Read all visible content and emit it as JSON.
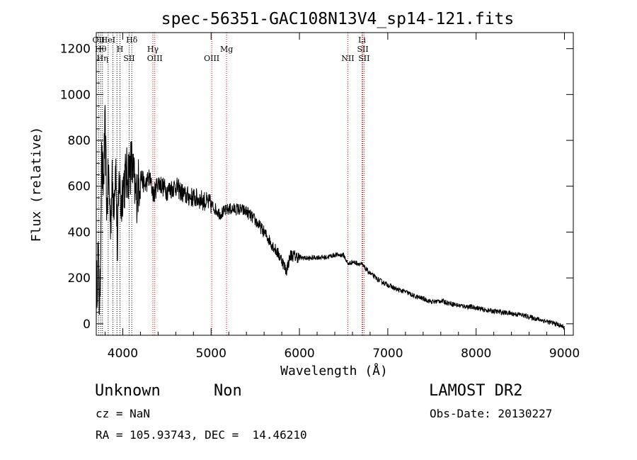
{
  "chart_data": {
    "type": "line",
    "title": "spec-56351-GAC108N13V4_sp14-121.fits",
    "xlabel": "Wavelength (Å)",
    "ylabel": "Flux (relative)",
    "xlim": [
      3700,
      9100
    ],
    "ylim": [
      -50,
      1270
    ],
    "x_ticks": [
      "4000",
      "5000",
      "6000",
      "7000",
      "8000",
      "9000"
    ],
    "x_tick_values": [
      4000,
      5000,
      6000,
      7000,
      8000,
      9000
    ],
    "y_ticks": [
      "0",
      "200",
      "400",
      "600",
      "800",
      "1000",
      "1200"
    ],
    "y_tick_values": [
      0,
      200,
      400,
      600,
      800,
      1000,
      1200
    ],
    "grid": false,
    "series": [
      {
        "name": "",
        "x": [
          3700,
          3720,
          3740,
          3760,
          3780,
          3800,
          3820,
          3840,
          3860,
          3880,
          3900,
          3920,
          3940,
          3960,
          3980,
          4000,
          4050,
          4100,
          4150,
          4200,
          4250,
          4300,
          4350,
          4400,
          4450,
          4500,
          4600,
          4700,
          4800,
          4900,
          5000,
          5100,
          5200,
          5300,
          5400,
          5500,
          5600,
          5700,
          5800,
          5850,
          5900,
          6000,
          6100,
          6200,
          6300,
          6400,
          6500,
          6550,
          6600,
          6700,
          6750,
          6800,
          6900,
          7000,
          7100,
          7200,
          7300,
          7400,
          7500,
          7600,
          7700,
          7800,
          7900,
          8000,
          8100,
          8200,
          8300,
          8400,
          8500,
          8600,
          8700,
          8800,
          8900,
          9000
        ],
        "y": [
          100,
          300,
          50,
          700,
          600,
          850,
          500,
          650,
          450,
          600,
          550,
          700,
          300,
          650,
          500,
          600,
          650,
          700,
          550,
          650,
          600,
          640,
          560,
          620,
          600,
          580,
          600,
          560,
          550,
          540,
          520,
          480,
          500,
          500,
          490,
          450,
          400,
          340,
          280,
          230,
          300,
          290,
          285,
          290,
          290,
          300,
          300,
          260,
          270,
          260,
          240,
          220,
          190,
          170,
          150,
          140,
          120,
          110,
          95,
          100,
          90,
          80,
          75,
          70,
          60,
          55,
          50,
          45,
          40,
          30,
          20,
          10,
          0,
          -15
        ]
      }
    ],
    "lines": [
      {
        "x": 3727,
        "labels": [
          "OII"
        ],
        "color": "#000000"
      },
      {
        "x": 3750,
        "labels": [
          "Hθ"
        ],
        "color": "#000000"
      },
      {
        "x": 3770,
        "labels": [
          "Hη"
        ],
        "color": "#000000"
      },
      {
        "x": 3835,
        "labels": [
          "HeI"
        ],
        "color": "#000000"
      },
      {
        "x": 3889,
        "labels": [],
        "color": "#000000"
      },
      {
        "x": 3934,
        "labels": [],
        "color": "#000000"
      },
      {
        "x": 3969,
        "labels": [
          "H"
        ],
        "color": "#000000"
      },
      {
        "x": 4072,
        "labels": [
          "SII"
        ],
        "color": "#000000"
      },
      {
        "x": 4102,
        "labels": [
          "Hδ"
        ],
        "color": "#000000"
      },
      {
        "x": 4341,
        "labels": [
          "Hγ"
        ],
        "color": "#cc0000"
      },
      {
        "x": 4363,
        "labels": [
          "OIII"
        ],
        "color": "#cc0000"
      },
      {
        "x": 5007,
        "labels": [
          "OIII"
        ],
        "color": "#cc0000"
      },
      {
        "x": 5175,
        "labels": [
          "Mg"
        ],
        "color": "#cc0000"
      },
      {
        "x": 6548,
        "labels": [
          "NII"
        ],
        "color": "#cc0000"
      },
      {
        "x": 6708,
        "labels": [
          "Li"
        ],
        "color": "#cc0000"
      },
      {
        "x": 6717,
        "labels": [
          "SII"
        ],
        "color": "#cc0000"
      },
      {
        "x": 6731,
        "labels": [
          "SII"
        ],
        "color": "#cc0000"
      }
    ]
  },
  "info": {
    "class": "Unknown",
    "subclass": "Non",
    "survey": "LAMOST DR2",
    "cz": "cz = NaN",
    "obs_date": "Obs-Date: 20130227",
    "radec": "RA = 105.93743, DEC =  14.46210"
  }
}
